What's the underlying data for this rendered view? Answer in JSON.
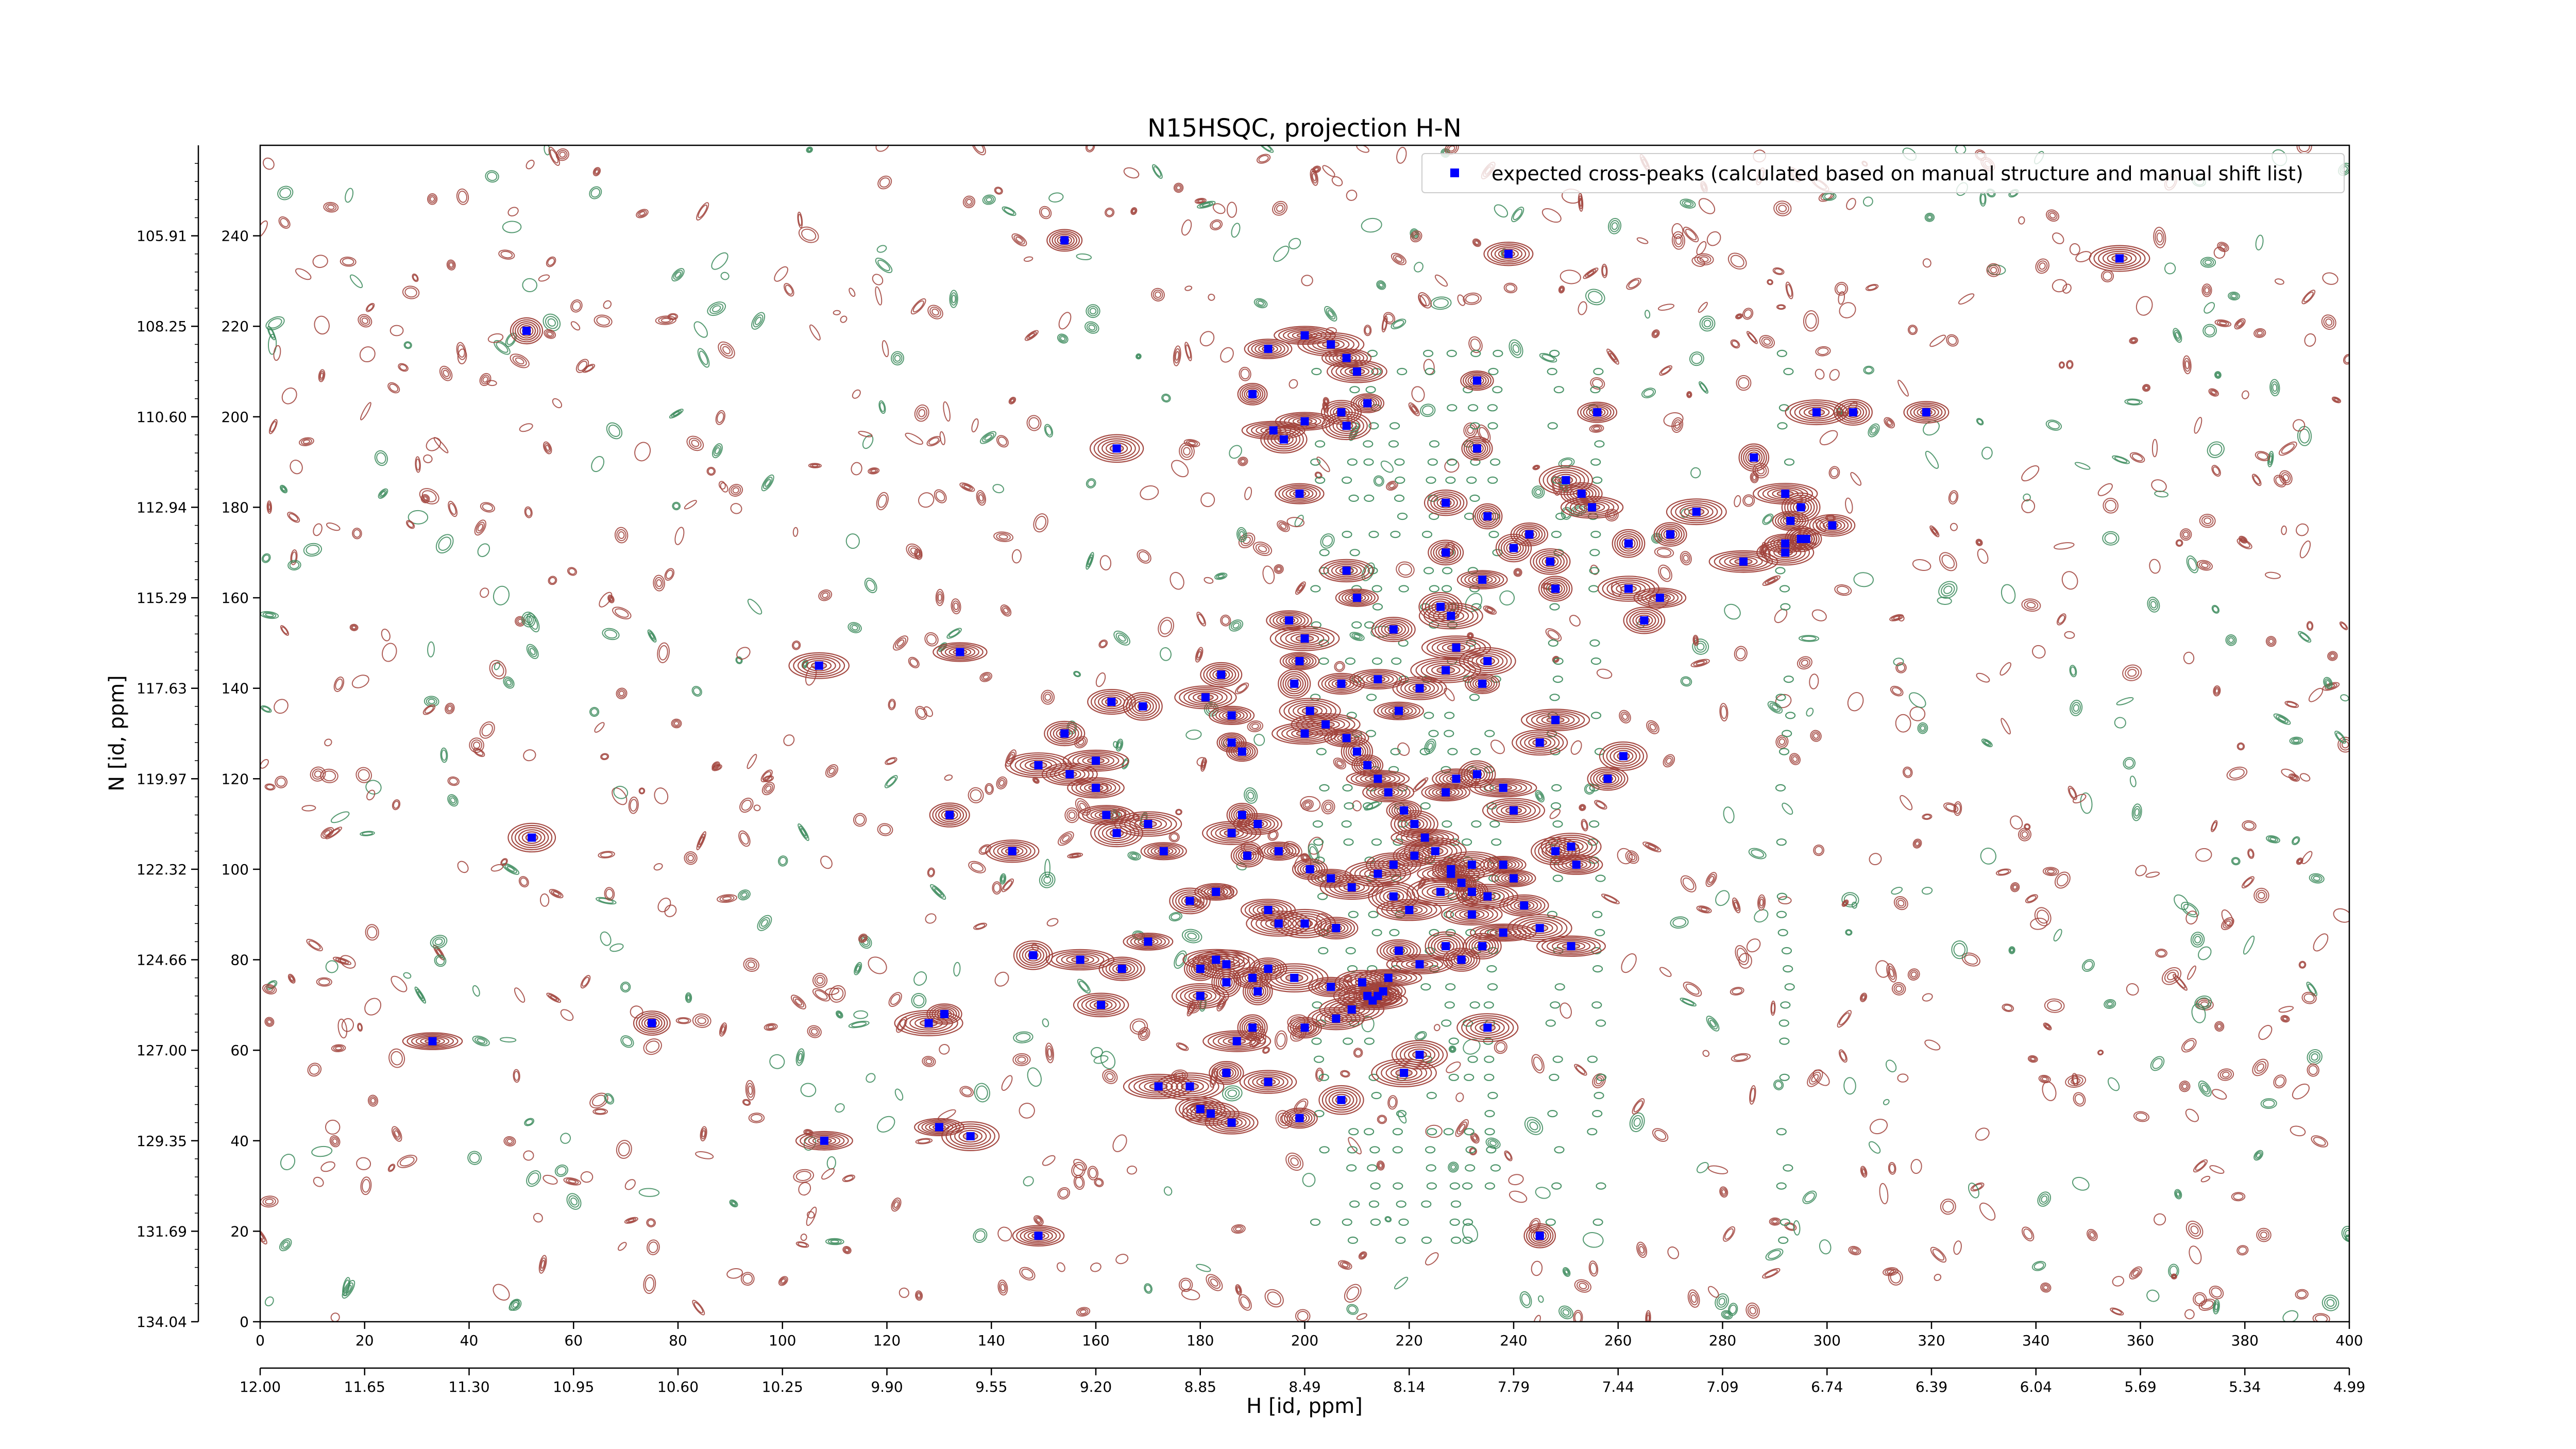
{
  "chart_data": {
    "type": "scatter",
    "title": "N15HSQC, projection H-N",
    "xlabel": "H [id, ppm]",
    "ylabel": "N [id, ppm]",
    "legend": {
      "label": "expected cross-peaks (calculated based on manual structure and manual shift list)",
      "placement": "top-right"
    },
    "x_index_range": [
      0,
      400
    ],
    "y_index_range": [
      0,
      260
    ],
    "x_index_ticks": [
      "0",
      "20",
      "40",
      "60",
      "80",
      "100",
      "120",
      "140",
      "160",
      "180",
      "200",
      "220",
      "240",
      "260",
      "280",
      "300",
      "320",
      "340",
      "360",
      "380",
      "400"
    ],
    "x_ppm_ticks": [
      "12.00",
      "11.65",
      "11.30",
      "10.95",
      "10.60",
      "10.25",
      "9.90",
      "9.55",
      "9.20",
      "8.85",
      "8.49",
      "8.14",
      "7.79",
      "7.44",
      "7.09",
      "6.74",
      "6.39",
      "6.04",
      "5.69",
      "5.34",
      "4.99"
    ],
    "y_index_ticks": [
      "0",
      "20",
      "40",
      "60",
      "80",
      "100",
      "120",
      "140",
      "160",
      "180",
      "200",
      "220",
      "240"
    ],
    "y_ppm_ticks": [
      "134.04",
      "131.69",
      "129.35",
      "127.00",
      "124.66",
      "122.32",
      "119.97",
      "117.63",
      "115.29",
      "112.94",
      "110.60",
      "108.25",
      "105.91"
    ],
    "grid": false,
    "colors": {
      "marker": "#0000ff",
      "positive_contour": "#a0413a",
      "negative_contour": "#3a8a5a"
    },
    "series": [
      {
        "name": "expected cross-peaks (calculated based on manual structure and manual shift list)",
        "points": [
          [
            51,
            219
          ],
          [
            154,
            239
          ],
          [
            239,
            236
          ],
          [
            356,
            235
          ],
          [
            200,
            218
          ],
          [
            193,
            215
          ],
          [
            205,
            216
          ],
          [
            208,
            213
          ],
          [
            210,
            210
          ],
          [
            212,
            203
          ],
          [
            190,
            205
          ],
          [
            200,
            199
          ],
          [
            207,
            201
          ],
          [
            208,
            198
          ],
          [
            194,
            197
          ],
          [
            196,
            195
          ],
          [
            164,
            193
          ],
          [
            199,
            183
          ],
          [
            233,
            208
          ],
          [
            256,
            201
          ],
          [
            298,
            201
          ],
          [
            305,
            201
          ],
          [
            319,
            201
          ],
          [
            286,
            191
          ],
          [
            233,
            193
          ],
          [
            250,
            186
          ],
          [
            253,
            183
          ],
          [
            255,
            180
          ],
          [
            227,
            181
          ],
          [
            235,
            178
          ],
          [
            243,
            174
          ],
          [
            240,
            171
          ],
          [
            247,
            168
          ],
          [
            262,
            172
          ],
          [
            270,
            174
          ],
          [
            275,
            179
          ],
          [
            292,
            183
          ],
          [
            295,
            180
          ],
          [
            293,
            177
          ],
          [
            301,
            176
          ],
          [
            295,
            173
          ],
          [
            292,
            172
          ],
          [
            292,
            170
          ],
          [
            284,
            168
          ],
          [
            296,
            173
          ],
          [
            208,
            166
          ],
          [
            210,
            160
          ],
          [
            227,
            170
          ],
          [
            234,
            164
          ],
          [
            226,
            158
          ],
          [
            248,
            162
          ],
          [
            262,
            162
          ],
          [
            268,
            160
          ],
          [
            265,
            155
          ],
          [
            197,
            155
          ],
          [
            200,
            151
          ],
          [
            217,
            153
          ],
          [
            228,
            156
          ],
          [
            229,
            149
          ],
          [
            235,
            146
          ],
          [
            234,
            141
          ],
          [
            227,
            144
          ],
          [
            222,
            140
          ],
          [
            218,
            135
          ],
          [
            214,
            142
          ],
          [
            207,
            141
          ],
          [
            199,
            146
          ],
          [
            198,
            141
          ],
          [
            184,
            143
          ],
          [
            186,
            134
          ],
          [
            163,
            137
          ],
          [
            169,
            136
          ],
          [
            181,
            138
          ],
          [
            201,
            135
          ],
          [
            134,
            148
          ],
          [
            107,
            145
          ],
          [
            248,
            133
          ],
          [
            245,
            128
          ],
          [
            258,
            120
          ],
          [
            261,
            125
          ],
          [
            154,
            130
          ],
          [
            160,
            124
          ],
          [
            186,
            128
          ],
          [
            188,
            126
          ],
          [
            200,
            130
          ],
          [
            204,
            132
          ],
          [
            208,
            129
          ],
          [
            210,
            126
          ],
          [
            212,
            123
          ],
          [
            214,
            120
          ],
          [
            216,
            117
          ],
          [
            219,
            113
          ],
          [
            221,
            110
          ],
          [
            223,
            107
          ],
          [
            225,
            104
          ],
          [
            228,
            100
          ],
          [
            230,
            97
          ],
          [
            232,
            95
          ],
          [
            227,
            117
          ],
          [
            229,
            120
          ],
          [
            233,
            121
          ],
          [
            238,
            118
          ],
          [
            240,
            113
          ],
          [
            149,
            123
          ],
          [
            155,
            121
          ],
          [
            160,
            118
          ],
          [
            162,
            112
          ],
          [
            170,
            110
          ],
          [
            164,
            108
          ],
          [
            173,
            104
          ],
          [
            188,
            112
          ],
          [
            186,
            108
          ],
          [
            191,
            110
          ],
          [
            189,
            103
          ],
          [
            195,
            104
          ],
          [
            201,
            100
          ],
          [
            205,
            98
          ],
          [
            209,
            96
          ],
          [
            214,
            99
          ],
          [
            217,
            101
          ],
          [
            221,
            103
          ],
          [
            226,
            95
          ],
          [
            228,
            99
          ],
          [
            232,
            101
          ],
          [
            248,
            104
          ],
          [
            251,
            105
          ],
          [
            252,
            101
          ],
          [
            238,
            101
          ],
          [
            240,
            98
          ],
          [
            235,
            94
          ],
          [
            220,
            91
          ],
          [
            242,
            92
          ],
          [
            52,
            107
          ],
          [
            132,
            112
          ],
          [
            144,
            104
          ],
          [
            178,
            93
          ],
          [
            183,
            95
          ],
          [
            193,
            91
          ],
          [
            195,
            88
          ],
          [
            200,
            88
          ],
          [
            206,
            87
          ],
          [
            217,
            94
          ],
          [
            232,
            90
          ],
          [
            234,
            83
          ],
          [
            245,
            87
          ],
          [
            148,
            81
          ],
          [
            157,
            80
          ],
          [
            165,
            78
          ],
          [
            170,
            84
          ],
          [
            180,
            78
          ],
          [
            183,
            80
          ],
          [
            185,
            79
          ],
          [
            190,
            76
          ],
          [
            193,
            78
          ],
          [
            198,
            76
          ],
          [
            205,
            74
          ],
          [
            211,
            75
          ],
          [
            212,
            72
          ],
          [
            214,
            72
          ],
          [
            216,
            76
          ],
          [
            218,
            82
          ],
          [
            222,
            79
          ],
          [
            227,
            83
          ],
          [
            230,
            80
          ],
          [
            238,
            86
          ],
          [
            251,
            83
          ],
          [
            33,
            62
          ],
          [
            75,
            66
          ],
          [
            128,
            66
          ],
          [
            131,
            68
          ],
          [
            161,
            70
          ],
          [
            180,
            72
          ],
          [
            185,
            75
          ],
          [
            191,
            73
          ],
          [
            200,
            65
          ],
          [
            206,
            67
          ],
          [
            209,
            69
          ],
          [
            213,
            71
          ],
          [
            215,
            73
          ],
          [
            222,
            59
          ],
          [
            235,
            65
          ],
          [
            187,
            62
          ],
          [
            190,
            65
          ],
          [
            193,
            53
          ],
          [
            185,
            55
          ],
          [
            178,
            52
          ],
          [
            172,
            52
          ],
          [
            180,
            47
          ],
          [
            182,
            46
          ],
          [
            186,
            44
          ],
          [
            199,
            45
          ],
          [
            207,
            49
          ],
          [
            219,
            55
          ],
          [
            108,
            40
          ],
          [
            130,
            43
          ],
          [
            136,
            41
          ],
          [
            149,
            19
          ],
          [
            245,
            19
          ]
        ]
      }
    ]
  }
}
